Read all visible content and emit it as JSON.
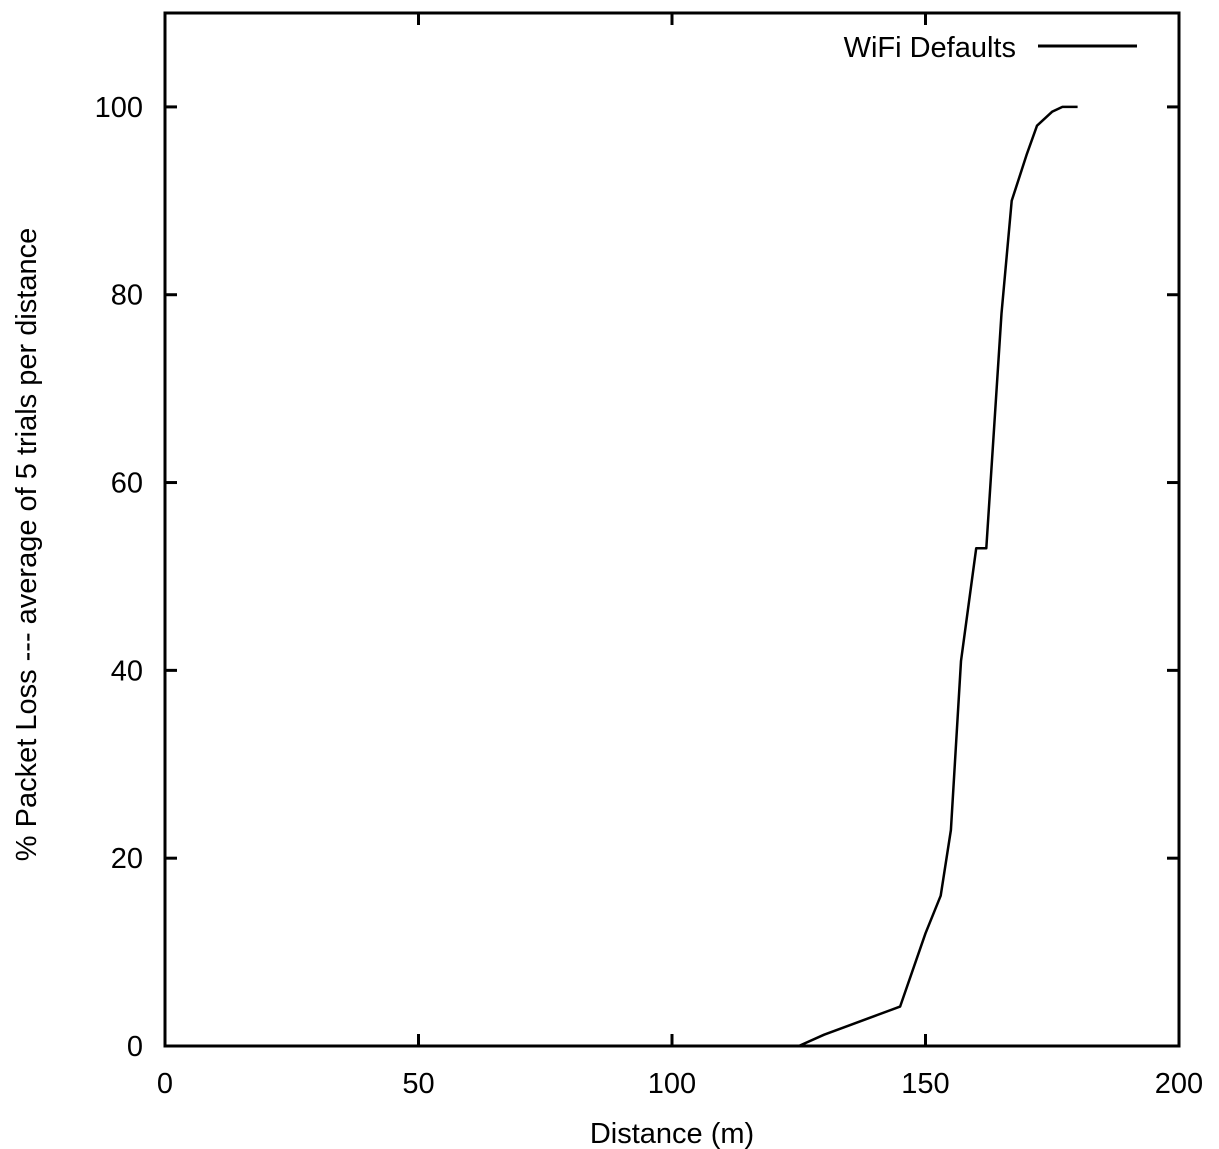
{
  "chart_data": {
    "type": "line",
    "title": "",
    "xlabel": "Distance (m)",
    "ylabel": "% Packet Loss --- average of 5 trials per distance",
    "xlim": [
      0,
      200
    ],
    "ylim": [
      0,
      110
    ],
    "xticks": [
      0,
      50,
      100,
      150,
      200
    ],
    "yticks": [
      0,
      20,
      40,
      60,
      80,
      100
    ],
    "grid": false,
    "legend_position": "top-right",
    "series": [
      {
        "name": "WiFi Defaults",
        "color": "#000000",
        "x": [
          125,
          130,
          135,
          140,
          145,
          150,
          153,
          155,
          157,
          160,
          162,
          165,
          167,
          170,
          172,
          175,
          177,
          180
        ],
        "y": [
          0,
          1.2,
          2.2,
          3.2,
          4.2,
          12.0,
          16.0,
          23.0,
          41.0,
          53.0,
          53.0,
          78.0,
          90.0,
          95.0,
          98.0,
          99.5,
          100,
          100
        ]
      }
    ]
  }
}
